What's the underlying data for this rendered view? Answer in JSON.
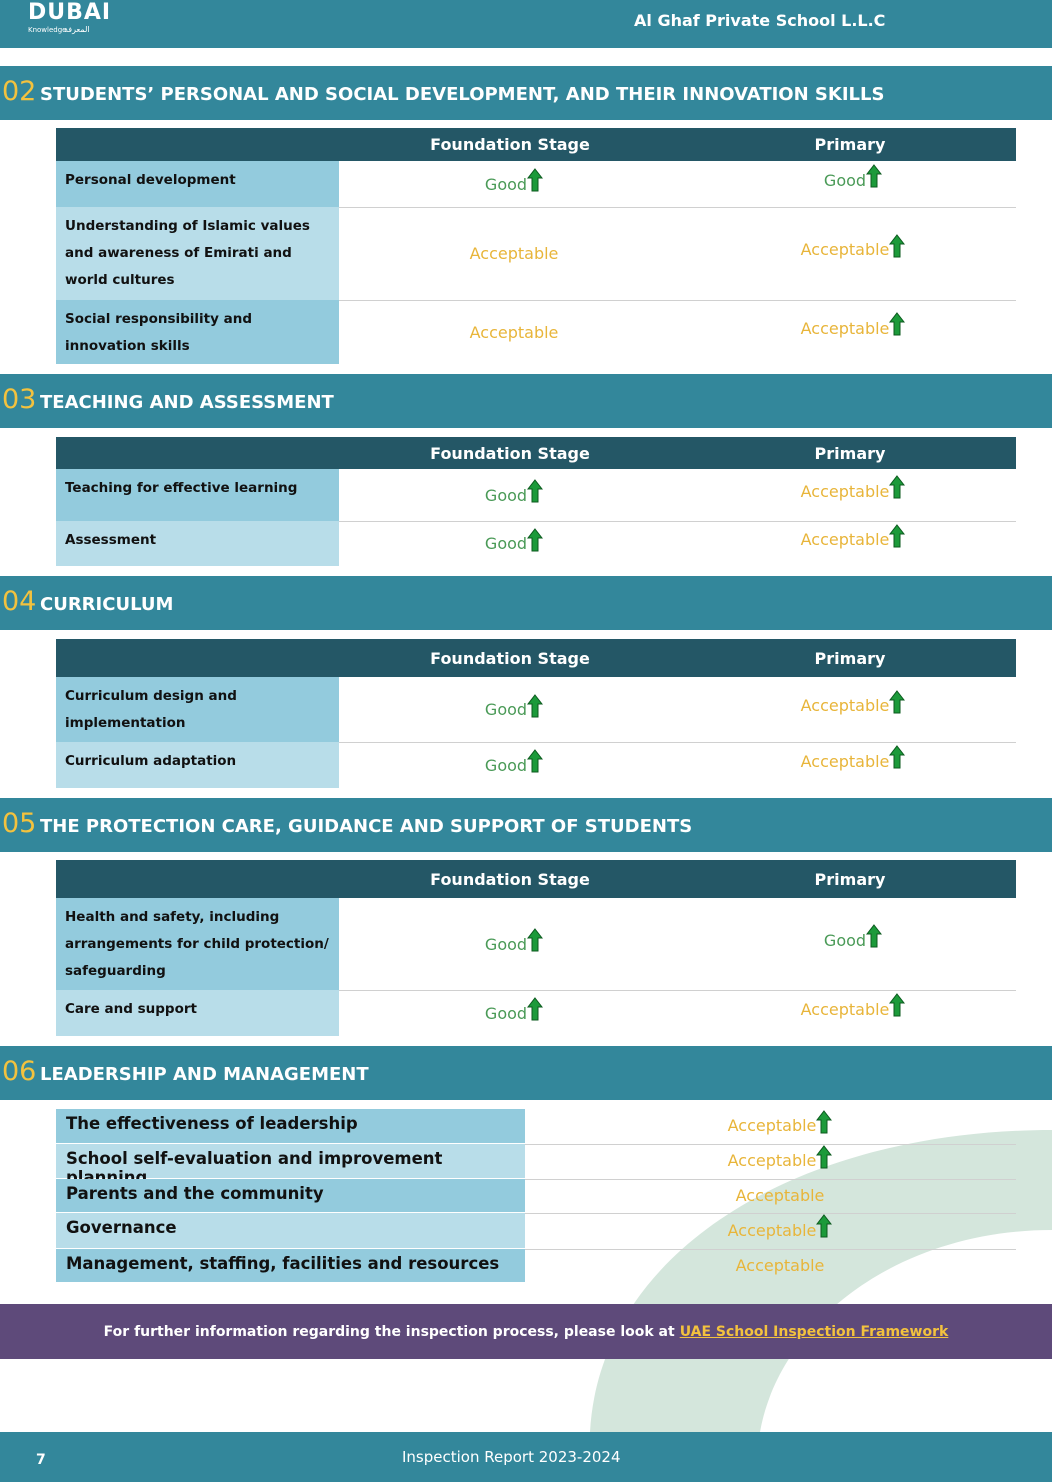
{
  "header": {
    "logo": "DUBAI",
    "logo_sub": [
      "Knowledge",
      "المعرفة"
    ],
    "school": "Al Ghaf Private School L.L.C"
  },
  "sections": [
    {
      "number": "02",
      "title": "STUDENTS’ PERSONAL AND SOCIAL DEVELOPMENT, AND THEIR INNOVATION SKILLS",
      "columns": [
        "Foundation Stage",
        "Primary"
      ],
      "rows": [
        {
          "label": "Personal development",
          "ratings": [
            {
              "text": "Good",
              "improved": true
            },
            {
              "text": "Good",
              "improved": true
            }
          ]
        },
        {
          "label": "Understanding of Islamic values and awareness of Emirati and world cultures",
          "ratings": [
            {
              "text": "Acceptable",
              "improved": false
            },
            {
              "text": "Acceptable",
              "improved": true
            }
          ]
        },
        {
          "label": "Social responsibility and innovation skills",
          "ratings": [
            {
              "text": "Acceptable",
              "improved": false
            },
            {
              "text": "Acceptable",
              "improved": true
            }
          ]
        }
      ]
    },
    {
      "number": "03",
      "title": "TEACHING AND ASSESSMENT",
      "columns": [
        "Foundation Stage",
        "Primary"
      ],
      "rows": [
        {
          "label": "Teaching for effective learning",
          "ratings": [
            {
              "text": "Good",
              "improved": true
            },
            {
              "text": "Acceptable",
              "improved": true
            }
          ]
        },
        {
          "label": "Assessment",
          "ratings": [
            {
              "text": "Good",
              "improved": true
            },
            {
              "text": "Acceptable",
              "improved": true
            }
          ]
        }
      ]
    },
    {
      "number": "04",
      "title": "CURRICULUM",
      "columns": [
        "Foundation Stage",
        "Primary"
      ],
      "rows": [
        {
          "label": "Curriculum design and implementation",
          "ratings": [
            {
              "text": "Good",
              "improved": true
            },
            {
              "text": "Acceptable",
              "improved": true
            }
          ]
        },
        {
          "label": "Curriculum adaptation",
          "ratings": [
            {
              "text": "Good",
              "improved": true
            },
            {
              "text": "Acceptable",
              "improved": true
            }
          ]
        }
      ]
    },
    {
      "number": "05",
      "title": "THE PROTECTION CARE, GUIDANCE AND SUPPORT OF STUDENTS",
      "columns": [
        "Foundation Stage",
        "Primary"
      ],
      "rows": [
        {
          "label": "Health and safety, including arrangements for child protection/ safeguarding",
          "ratings": [
            {
              "text": "Good",
              "improved": true
            },
            {
              "text": "Good",
              "improved": true
            }
          ]
        },
        {
          "label": "Care and support",
          "ratings": [
            {
              "text": "Good",
              "improved": true
            },
            {
              "text": "Acceptable",
              "improved": true
            }
          ]
        }
      ]
    }
  ],
  "leadership": {
    "number": "06",
    "title": "LEADERSHIP AND MANAGEMENT",
    "rows": [
      {
        "label": "The effectiveness of leadership",
        "rating": {
          "text": "Acceptable",
          "improved": true
        }
      },
      {
        "label": "School self-evaluation and improvement planning",
        "rating": {
          "text": "Acceptable",
          "improved": true
        }
      },
      {
        "label": "Parents and the community",
        "rating": {
          "text": "Acceptable",
          "improved": false
        }
      },
      {
        "label": "Governance",
        "rating": {
          "text": "Acceptable",
          "improved": true
        }
      },
      {
        "label": "Management, staffing, facilities and resources",
        "rating": {
          "text": "Acceptable",
          "improved": false
        }
      }
    ]
  },
  "note": {
    "text": "For further information regarding the inspection process, please look at",
    "link": "UAE School Inspection Framework"
  },
  "footer": {
    "page": "7",
    "report": "Inspection Report 2023-2024"
  }
}
